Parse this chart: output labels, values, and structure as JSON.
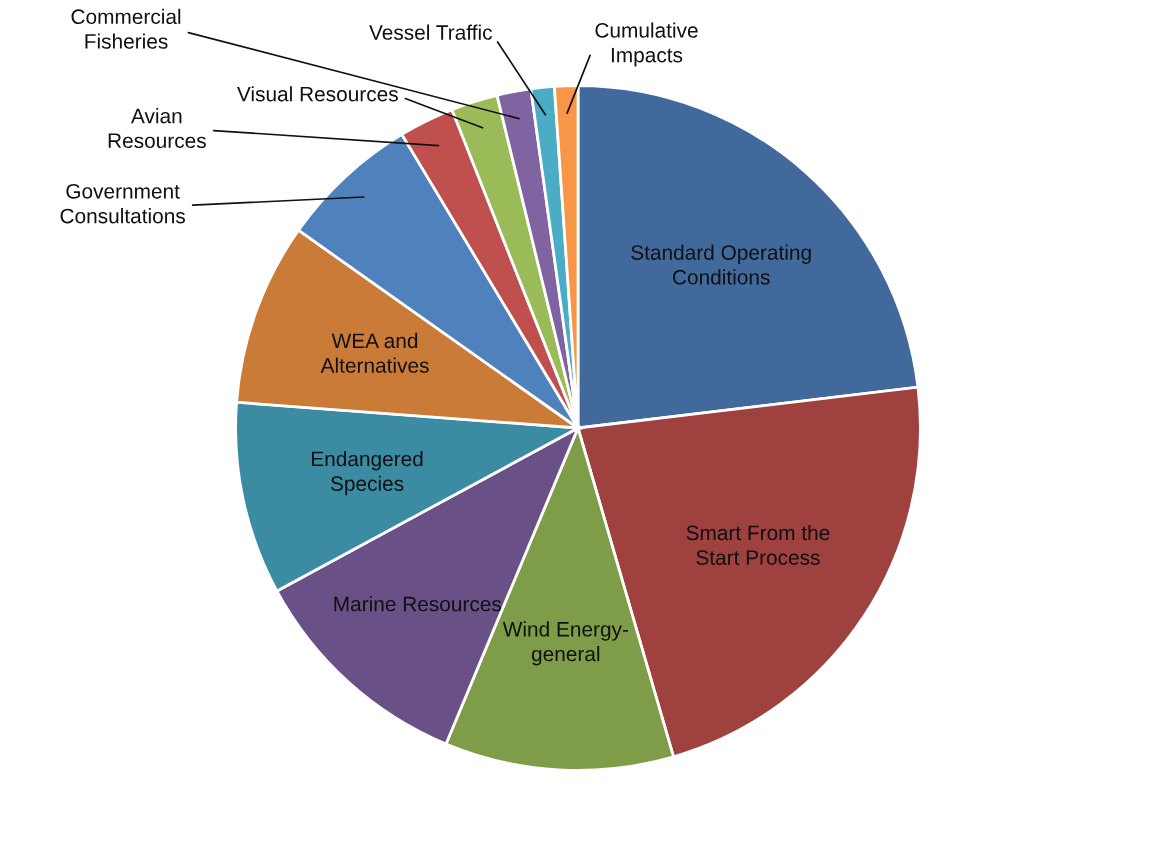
{
  "chart_data": {
    "type": "pie",
    "categories": [
      "Standard Operating\nConditions",
      "Smart From the\nStart Process",
      "Wind Energy-\ngeneral",
      "Marine Resources",
      "Endangered\nSpecies",
      "WEA and\nAlternatives",
      "Government\nConsultations",
      "Avian\nResources",
      "Visual Resources",
      "Commercial\nFisheries",
      "Vessel Traffic",
      "Cumulative\nImpacts"
    ],
    "values": [
      23.1,
      22.4,
      10.8,
      10.8,
      9.1,
      8.6,
      6.6,
      2.6,
      2.2,
      1.6,
      1.1,
      1.1
    ],
    "colors": [
      "#41699c",
      "#9e413f",
      "#7f9d48",
      "#695187",
      "#3b8ca3",
      "#cb7b38",
      "#4f81bd",
      "#c0504d",
      "#9bbb59",
      "#8064a2",
      "#4bacc6",
      "#f79646"
    ],
    "legend": false
  }
}
